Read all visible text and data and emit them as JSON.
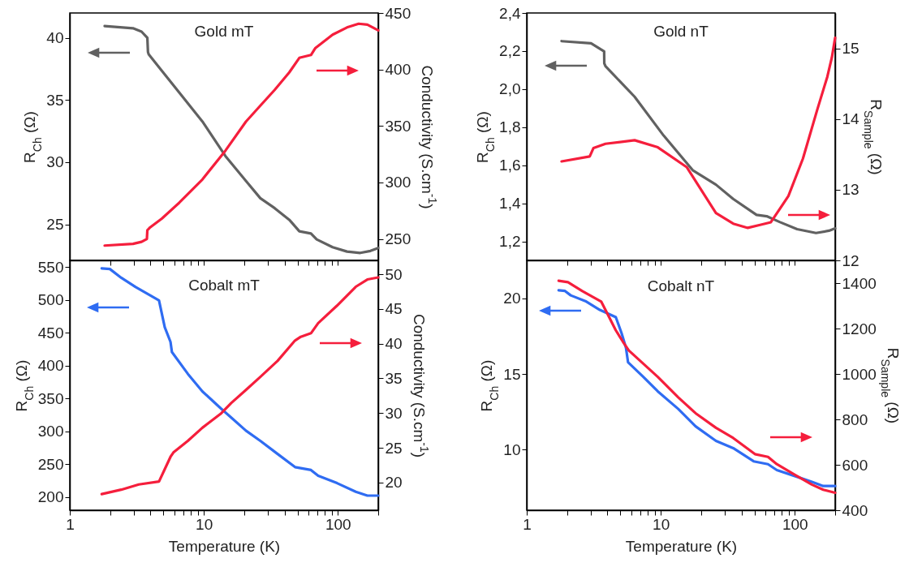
{
  "chart_data": [
    {
      "type": "line",
      "title": "Gold mT",
      "ylabel": "R$_{Ch}$ (Ω)",
      "y2label": "Conductivity (S.cm$^{-1}$)",
      "log": "x",
      "tick_labels": "y",
      "xlim": [
        1,
        200
      ],
      "xticks": [
        1,
        {
          "value": 2,
          "label": null
        },
        {
          "value": 3,
          "label": null
        },
        {
          "value": 4,
          "label": null
        },
        {
          "value": 5,
          "label": null
        },
        {
          "value": 6,
          "label": null
        },
        {
          "value": 7,
          "label": null
        },
        {
          "value": 8,
          "label": null
        },
        {
          "value": 9,
          "label": null
        },
        10,
        {
          "value": 20,
          "label": null
        },
        {
          "value": 30,
          "label": null
        },
        {
          "value": 40,
          "label": null
        },
        {
          "value": 50,
          "label": null
        },
        {
          "value": 60,
          "label": null
        },
        {
          "value": 70,
          "label": null
        },
        {
          "value": 80,
          "label": null
        },
        {
          "value": 90,
          "label": null
        },
        100,
        {
          "value": 200,
          "label": null
        }
      ],
      "ylim": [
        22.1,
        42
      ],
      "yticks": [
        25,
        30,
        35,
        40
      ],
      "y2lim": [
        231,
        450
      ],
      "y2ticks": [
        250,
        300,
        350,
        400,
        450
      ],
      "series": [
        {
          "color": "#616161",
          "x": [
            1.82,
            2.96,
            3.43,
            3.79,
            3.83,
            3.88,
            4.86,
            6.55,
            9.75,
            14.5,
            20.6,
            26.4,
            33.8,
            43.4,
            51.6,
            63,
            69.5,
            91.4,
            117,
            147,
            175,
            200
          ],
          "values": [
            40.95,
            40.77,
            40.5,
            40.0,
            38.86,
            38.67,
            37.35,
            35.6,
            33.28,
            30.49,
            28.5,
            27.1,
            26.3,
            25.37,
            24.44,
            24.26,
            23.79,
            23.16,
            22.81,
            22.7,
            22.86,
            23.1
          ]
        },
        {
          "color": "#f51e3c",
          "axis": "y2",
          "x": [
            1.82,
            2.96,
            3.43,
            3.76,
            3.79,
            3.98,
            4.86,
            6.55,
            9.75,
            14.5,
            20.6,
            26.4,
            33.8,
            43.4,
            51.6,
            63,
            68,
            91.4,
            117,
            143,
            166,
            200
          ],
          "values": [
            244.1,
            245.6,
            247.4,
            250,
            257.7,
            260.3,
            268,
            282,
            302.6,
            328.2,
            353.8,
            368,
            382,
            397.4,
            410.3,
            412.8,
            419,
            430.8,
            437.2,
            440.5,
            439.7,
            434.6
          ]
        }
      ]
    },
    {
      "type": "line",
      "title": "Gold nT",
      "ylabel": "R$_{Ch}$ (Ω)",
      "y2label": "R$_{Sample}$ (Ω)",
      "log": "x",
      "tick_labels": "y",
      "xlim": [
        1,
        200
      ],
      "xticks": [
        1,
        {
          "value": 2,
          "label": null
        },
        {
          "value": 3,
          "label": null
        },
        {
          "value": 4,
          "label": null
        },
        {
          "value": 5,
          "label": null
        },
        {
          "value": 6,
          "label": null
        },
        {
          "value": 7,
          "label": null
        },
        {
          "value": 8,
          "label": null
        },
        {
          "value": 9,
          "label": null
        },
        10,
        {
          "value": 20,
          "label": null
        },
        {
          "value": 30,
          "label": null
        },
        {
          "value": 40,
          "label": null
        },
        {
          "value": 50,
          "label": null
        },
        {
          "value": 60,
          "label": null
        },
        {
          "value": 70,
          "label": null
        },
        {
          "value": 80,
          "label": null
        },
        {
          "value": 90,
          "label": null
        },
        100,
        {
          "value": 200,
          "label": null
        }
      ],
      "ylim": [
        1.1,
        2.4
      ],
      "yticks": [
        {
          "value": 1.2,
          "label": "1,2"
        },
        {
          "value": 1.4,
          "label": "1,4"
        },
        {
          "value": 1.6,
          "label": "1,6"
        },
        {
          "value": 1.8,
          "label": "1,8"
        },
        {
          "value": 2.0,
          "label": "2,0"
        },
        {
          "value": 2.2,
          "label": "2,2"
        },
        {
          "value": 2.4,
          "label": "2,4"
        }
      ],
      "y2lim": [
        12,
        15.5
      ],
      "y2ticks": [
        12,
        13,
        14,
        15
      ],
      "series": [
        {
          "color": "#616161",
          "x": [
            1.82,
            3.02,
            3.78,
            3.79,
            3.87,
            6.38,
            10.5,
            17.3,
            25.8,
            34.7,
            51.8,
            61.7,
            77,
            104,
            144,
            180,
            200
          ],
          "values": [
            2.252,
            2.241,
            2.198,
            2.135,
            2.12,
            1.96,
            1.756,
            1.574,
            1.498,
            1.423,
            1.339,
            1.332,
            1.302,
            1.264,
            1.244,
            1.256,
            1.268
          ]
        },
        {
          "color": "#f51e3c",
          "axis": "y2",
          "x": [
            1.82,
            2.95,
            3.15,
            3.87,
            6.38,
            9.5,
            15.6,
            25.8,
            34.7,
            44.6,
            54.3,
            66.3,
            89.6,
            115,
            147,
            175,
            189,
            200
          ],
          "values": [
            13.4,
            13.47,
            13.59,
            13.65,
            13.7,
            13.6,
            13.32,
            12.67,
            12.52,
            12.46,
            12.5,
            12.54,
            12.91,
            13.44,
            14.13,
            14.6,
            14.87,
            15.15
          ]
        }
      ]
    },
    {
      "type": "line",
      "title": "Cobalt mT",
      "xlabel": "Temperature (K)",
      "ylabel": "R$_{Ch}$ (Ω)",
      "y2label": "Conductivity (S.cm$^{-1}$)",
      "log": "x",
      "xlim": [
        1,
        200
      ],
      "xticks": [
        1,
        {
          "value": 2,
          "label": null
        },
        {
          "value": 3,
          "label": null
        },
        {
          "value": 4,
          "label": null
        },
        {
          "value": 5,
          "label": null
        },
        {
          "value": 6,
          "label": null
        },
        {
          "value": 7,
          "label": null
        },
        {
          "value": 8,
          "label": null
        },
        {
          "value": 9,
          "label": null
        },
        10,
        {
          "value": 20,
          "label": null
        },
        {
          "value": 30,
          "label": null
        },
        {
          "value": 40,
          "label": null
        },
        {
          "value": 50,
          "label": null
        },
        {
          "value": 60,
          "label": null
        },
        {
          "value": 70,
          "label": null
        },
        {
          "value": 80,
          "label": null
        },
        {
          "value": 90,
          "label": null
        },
        100,
        {
          "value": 200,
          "label": null
        }
      ],
      "ylim": [
        180,
        560
      ],
      "yticks": [
        200,
        250,
        300,
        350,
        400,
        450,
        500,
        550
      ],
      "y2lim": [
        16,
        52
      ],
      "y2ticks": [
        20,
        25,
        30,
        35,
        40,
        45,
        50
      ],
      "series": [
        {
          "color": "#2f6cf2",
          "x": [
            1.73,
            1.99,
            2.42,
            3.1,
            3.79,
            4.63,
            5.11,
            5.64,
            5.78,
            7.6,
            9.75,
            13.5,
            16,
            20.6,
            26.4,
            35.5,
            47.9,
            63,
            71.3,
            98.6,
            136,
            166,
            200
          ],
          "values": [
            547.8,
            546.9,
            533.6,
            519.4,
            509.2,
            499,
            458.3,
            436,
            420.5,
            387.4,
            360.8,
            334.2,
            321,
            301,
            285.5,
            265.6,
            245.6,
            241.2,
            232.3,
            221.2,
            208,
            202.2,
            202.2
          ]
        },
        {
          "color": "#f51e3c",
          "axis": "y2",
          "x": [
            1.73,
            2.42,
            3.27,
            4.63,
            5.2,
            5.64,
            5.93,
            7.6,
            9.75,
            13.5,
            16,
            20.6,
            26.4,
            35.5,
            47.9,
            52.9,
            63,
            71.3,
            98.6,
            136,
            166,
            200
          ],
          "values": [
            18.33,
            18.96,
            19.71,
            20.13,
            22.22,
            23.69,
            24.32,
            26.0,
            27.88,
            29.98,
            31.44,
            33.33,
            35.21,
            37.52,
            40.45,
            40.99,
            41.5,
            42.96,
            45.48,
            48.2,
            49.25,
            49.54
          ]
        }
      ]
    },
    {
      "type": "line",
      "title": "Cobalt nT",
      "xlabel": "Temperature (K)",
      "ylabel": "R$_{Ch}$ (Ω)",
      "y2label": "R$_{Sample}$ (Ω)",
      "log": "x",
      "xlim": [
        1,
        200
      ],
      "xticks": [
        1,
        {
          "value": 2,
          "label": null
        },
        {
          "value": 3,
          "label": null
        },
        {
          "value": 4,
          "label": null
        },
        {
          "value": 5,
          "label": null
        },
        {
          "value": 6,
          "label": null
        },
        {
          "value": 7,
          "label": null
        },
        {
          "value": 8,
          "label": null
        },
        {
          "value": 9,
          "label": null
        },
        10,
        {
          "value": 20,
          "label": null
        },
        {
          "value": 30,
          "label": null
        },
        {
          "value": 40,
          "label": null
        },
        {
          "value": 50,
          "label": null
        },
        {
          "value": 60,
          "label": null
        },
        {
          "value": 70,
          "label": null
        },
        {
          "value": 80,
          "label": null
        },
        {
          "value": 90,
          "label": null
        },
        100,
        {
          "value": 200,
          "label": null
        }
      ],
      "ylim": [
        6,
        22.5
      ],
      "yticks": [
        10,
        15,
        20
      ],
      "y2lim": [
        400,
        1500
      ],
      "y2ticks": [
        400,
        600,
        800,
        1000,
        1200,
        1400
      ],
      "series": [
        {
          "color": "#2f6cf2",
          "x": [
            1.73,
            1.93,
            2.13,
            2.74,
            3.51,
            4.62,
            5.1,
            5.5,
            5.7,
            7.41,
            9.5,
            13.5,
            18.2,
            25.8,
            34.7,
            49.3,
            63.1,
            73.4,
            99,
            134,
            163,
            200
          ],
          "values": [
            20.52,
            20.48,
            20.19,
            19.81,
            19.23,
            18.75,
            17.69,
            16.73,
            15.77,
            14.81,
            13.85,
            12.69,
            11.54,
            10.58,
            10.1,
            9.23,
            9.04,
            8.65,
            8.27,
            7.88,
            7.6,
            7.6
          ]
        },
        {
          "color": "#f51e3c",
          "axis": "y2",
          "x": [
            1.73,
            2.03,
            2.6,
            3.6,
            4.07,
            4.62,
            5.23,
            5.78,
            7.41,
            9.5,
            13.5,
            18.2,
            25.8,
            34.7,
            50.4,
            63.1,
            73.4,
            99,
            134,
            163,
            200
          ],
          "values": [
            1410,
            1404,
            1365,
            1318,
            1256,
            1192,
            1141,
            1103,
            1045,
            987,
            897,
            827,
            763,
            718,
            647,
            635,
            603,
            558,
            513,
            490,
            477
          ]
        }
      ]
    }
  ]
}
